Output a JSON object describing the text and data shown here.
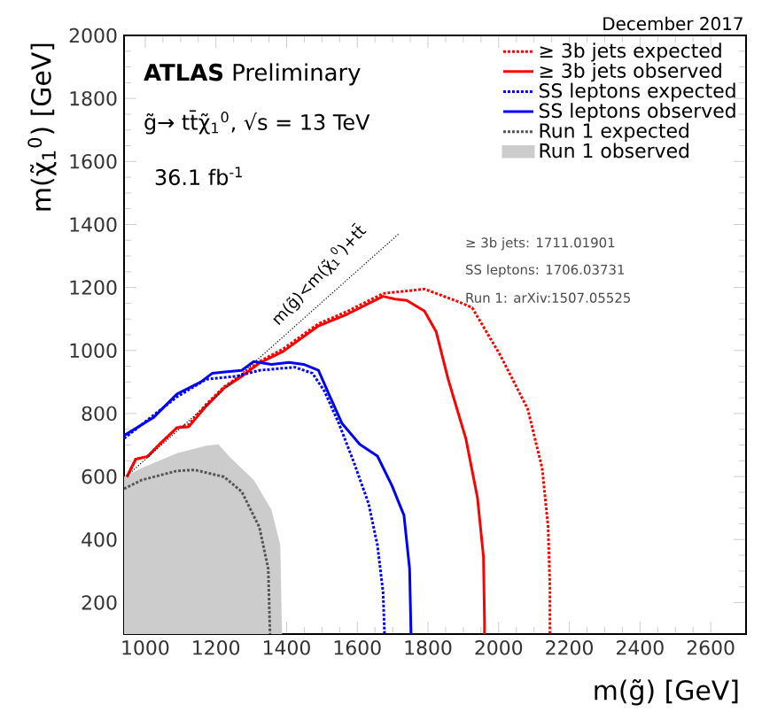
{
  "chart_data": {
    "type": "line",
    "xlabel": "m(g̃) [GeV]",
    "ylabel": "m(χ̃$_{1}$$^{0}$) [GeV]",
    "xlim": [
      940,
      2700
    ],
    "ylim": [
      100,
      2000
    ],
    "xticks": [
      1000,
      1200,
      1400,
      1600,
      1800,
      2000,
      2200,
      2400,
      2600
    ],
    "yticks": [
      200,
      400,
      600,
      800,
      1000,
      1200,
      1400,
      1600,
      1800,
      2000
    ],
    "legend": "top right",
    "annotations": [
      "December 2017",
      "**ATLAS** Preliminary",
      "g̃→ tt̄χ̃$_{1}$$^{0}$, √s = 13 TeV",
      "36.1 fb$^{-1}$",
      "≥ 3b jets: 1711.01901",
      "SS leptons: 1706.03731",
      "Run 1: arXiv:1507.05525",
      "m(g̃)<m(χ̃$_{1}$$^{0}$)+tt̄"
    ],
    "series": [
      {
        "name": "≥ 3b jets expected",
        "color": "#ff0000",
        "line_style": "dotted",
        "x": [
          948,
          973,
          1007,
          1040,
          1090,
          1123,
          1173,
          1223,
          1273,
          1323,
          1390,
          1490,
          1573,
          1673,
          1790,
          1890,
          1925,
          2005,
          2082,
          2123,
          2140,
          2145,
          2145
        ],
        "values": [
          599,
          655,
          664,
          702,
          755,
          765,
          830,
          885,
          922,
          965,
          1005,
          1085,
          1125,
          1181,
          1195,
          1153,
          1136,
          984,
          815,
          627,
          439,
          251,
          100
        ]
      },
      {
        "name": "≥ 3b jets observed",
        "color": "#ff0000",
        "line_style": "solid",
        "x": [
          948,
          973,
          1007,
          1040,
          1090,
          1123,
          1173,
          1223,
          1273,
          1323,
          1390,
          1490,
          1573,
          1673,
          1707,
          1740,
          1790,
          1823,
          1857,
          1907,
          1940,
          1957,
          1960,
          1960
        ],
        "values": [
          599,
          655,
          664,
          702,
          755,
          758,
          824,
          881,
          918,
          960,
          997,
          1078,
          1116,
          1172,
          1163,
          1159,
          1125,
          1060,
          909,
          721,
          533,
          345,
          138,
          100
        ]
      },
      {
        "name": "SS leptons expected",
        "color": "#0000ff",
        "line_style": "dotted",
        "x": [
          940,
          1090,
          1173,
          1257,
          1323,
          1423,
          1473,
          1507,
          1548,
          1590,
          1632,
          1657,
          1673,
          1677
        ],
        "values": [
          721,
          853,
          909,
          918,
          937,
          947,
          928,
          871,
          768,
          646,
          514,
          382,
          232,
          100
        ]
      },
      {
        "name": "SS leptons observed",
        "color": "#0000ff",
        "line_style": "solid",
        "x": [
          940,
          1023,
          1090,
          1157,
          1190,
          1273,
          1307,
          1357,
          1407,
          1448,
          1490,
          1523,
          1557,
          1607,
          1657,
          1698,
          1732,
          1748,
          1752
        ],
        "values": [
          730,
          787,
          862,
          900,
          928,
          937,
          965,
          956,
          962,
          956,
          937,
          853,
          768,
          702,
          665,
          571,
          477,
          307,
          100
        ]
      },
      {
        "name": "Run 1 expected",
        "color": "#555555",
        "line_style": "dotted",
        "x": [
          940,
          990,
          1090,
          1140,
          1223,
          1273,
          1323,
          1348,
          1353
        ],
        "values": [
          561,
          589,
          618,
          621,
          599,
          552,
          439,
          307,
          100
        ]
      },
      {
        "name": "Run 1 observed",
        "type": "area",
        "color": "#cccccc",
        "x": [
          940,
          990,
          1090,
          1173,
          1207,
          1240,
          1307,
          1357,
          1382,
          1387
        ],
        "values": [
          599,
          627,
          674,
          698,
          702,
          661,
          589,
          495,
          383,
          100
        ]
      },
      {
        "color": "#000000",
        "line_style": "dotted",
        "x": [
          950,
          1720
        ],
        "values": [
          604,
          1373
        ]
      }
    ]
  }
}
